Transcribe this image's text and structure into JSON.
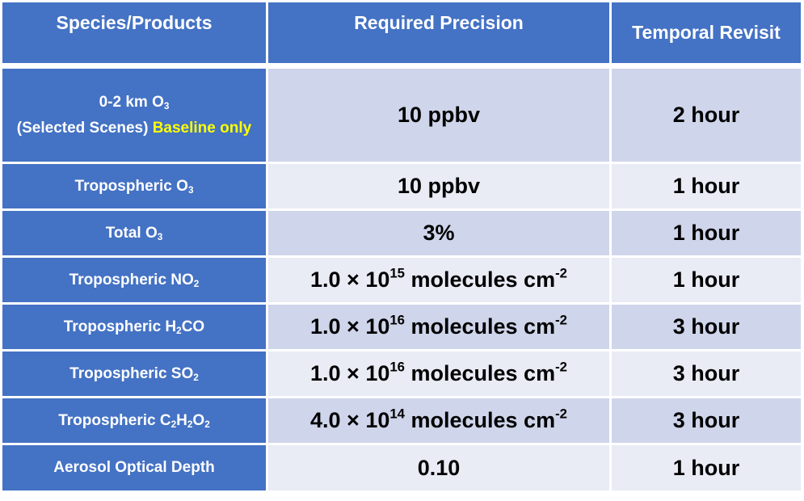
{
  "table": {
    "headers": {
      "species": "Species/Products",
      "precision": "Required Precision",
      "revisit": "Temporal Revisit"
    },
    "rows": [
      {
        "species_prefix": "0-2 km O",
        "species_sub": "3",
        "species_line2": "(Selected Scenes)",
        "species_highlight": "Baseline only",
        "precision": "10 ppbv",
        "revisit": "2 hour"
      },
      {
        "species_prefix": "Tropospheric O",
        "species_sub": "3",
        "precision": "10 ppbv",
        "revisit": "1 hour"
      },
      {
        "species_prefix": "Total O",
        "species_sub": "3",
        "precision": "3%",
        "revisit": "1 hour"
      },
      {
        "species_prefix": "Tropospheric NO",
        "species_sub": "2",
        "precision_mantissa": "1.0 × 10",
        "precision_exp": "15",
        "precision_unit": " molecules cm",
        "precision_unit_exp": "-2",
        "revisit": "1 hour"
      },
      {
        "species_prefix": "Tropospheric H",
        "species_sub": "2",
        "species_suffix": "CO",
        "precision_mantissa": "1.0 × 10",
        "precision_exp": "16",
        "precision_unit": " molecules cm",
        "precision_unit_exp": "-2",
        "revisit": "3 hour"
      },
      {
        "species_prefix": "Tropospheric SO",
        "species_sub": "2",
        "precision_mantissa": "1.0 × 10",
        "precision_exp": "16",
        "precision_unit": " molecules cm",
        "precision_unit_exp": "-2",
        "revisit": "3 hour"
      },
      {
        "species_prefix": "Tropospheric C",
        "species_sub": "2",
        "species_mid": "H",
        "species_sub2": "2",
        "species_mid2": "O",
        "species_sub3": "2",
        "precision_mantissa": "4.0 × 10",
        "precision_exp": "14",
        "precision_unit": " molecules cm",
        "precision_unit_exp": "-2",
        "revisit": "3 hour"
      },
      {
        "species_prefix": "Aerosol Optical Depth",
        "precision": "0.10",
        "revisit": "1 hour"
      }
    ]
  }
}
